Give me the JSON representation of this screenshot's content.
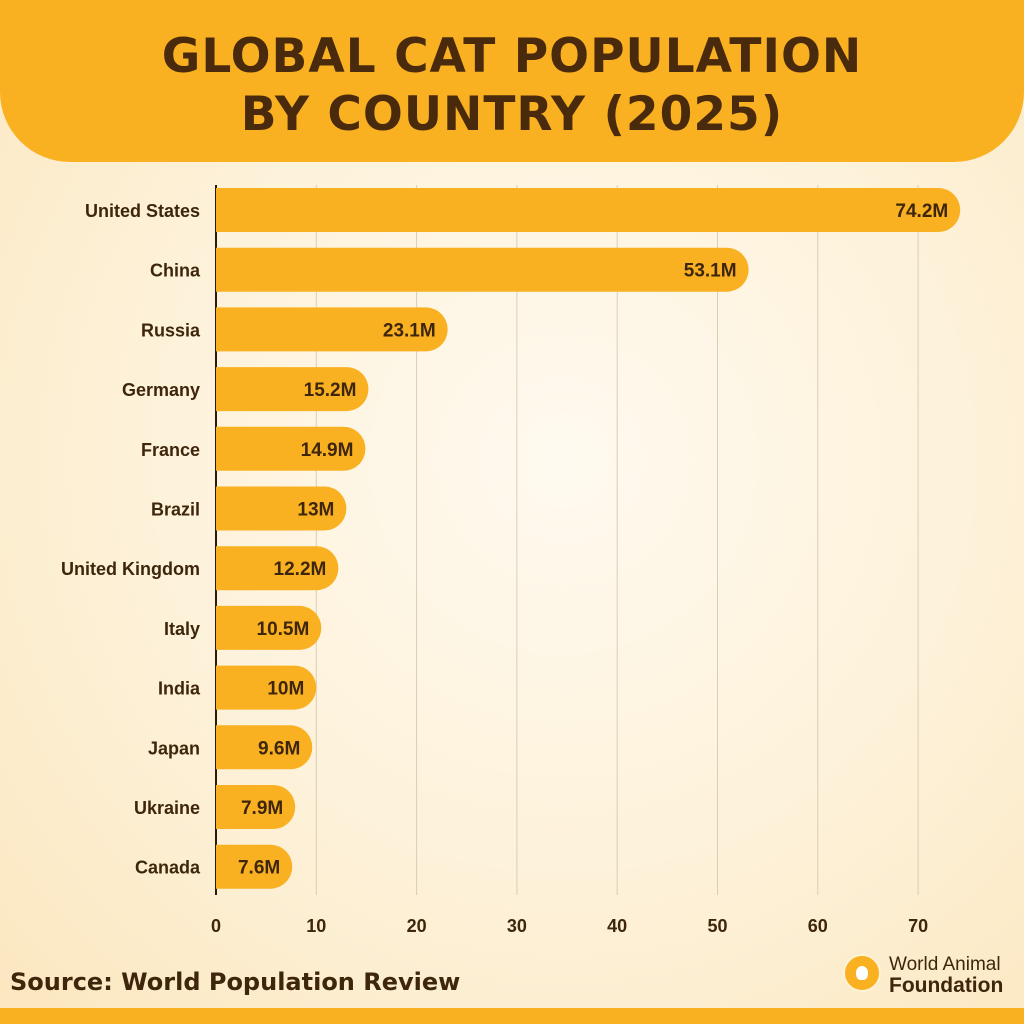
{
  "header": {
    "title_line1": "GLOBAL CAT POPULATION",
    "title_line2": "BY COUNTRY (2025)"
  },
  "colors": {
    "bar": "#f9b122",
    "header": "#f9b122",
    "text": "#3e260c",
    "grid": "#d9cdb8"
  },
  "chart_data": {
    "type": "bar",
    "orientation": "horizontal",
    "title": "GLOBAL CAT POPULATION BY COUNTRY (2025)",
    "categories": [
      "United States",
      "China",
      "Russia",
      "Germany",
      "France",
      "Brazil",
      "United Kingdom",
      "Italy",
      "India",
      "Japan",
      "Ukraine",
      "Canada"
    ],
    "values": [
      74.2,
      53.1,
      23.1,
      15.2,
      14.9,
      13,
      12.2,
      10.5,
      10,
      9.6,
      7.9,
      7.6
    ],
    "value_labels": [
      "74.2M",
      "53.1M",
      "23.1M",
      "15.2M",
      "14.9M",
      "13M",
      "12.2M",
      "10.5M",
      "10M",
      "9.6M",
      "7.9M",
      "7.6M"
    ],
    "xticks": [
      "0",
      "10",
      "20",
      "30",
      "40",
      "50",
      "60",
      "70"
    ],
    "xlim": [
      0,
      77
    ],
    "grid": true
  },
  "footer": {
    "source": "Source: World Population Review",
    "logo_line1": "World Animal",
    "logo_line2": "Foundation"
  }
}
